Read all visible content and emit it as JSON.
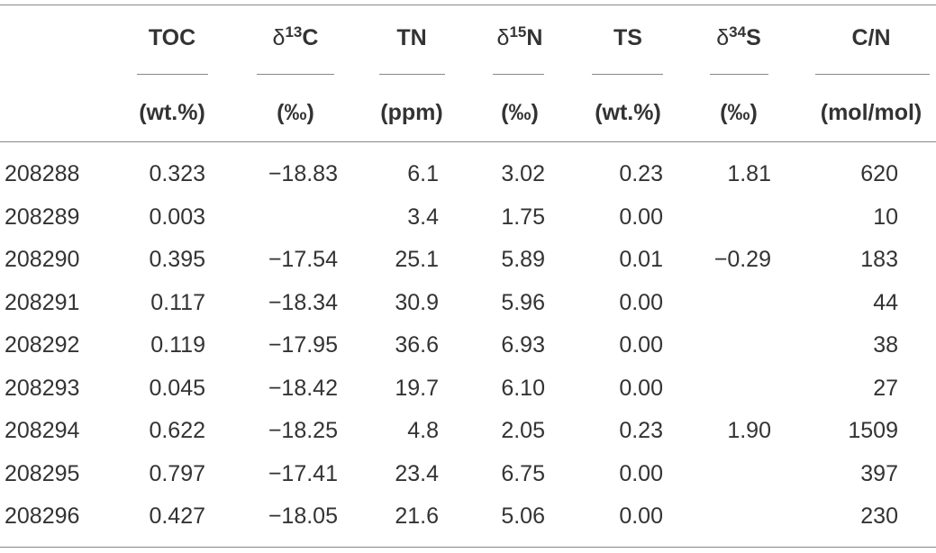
{
  "header": {
    "columns": [
      {
        "main": "TOC",
        "unit": "(wt.%)"
      },
      {
        "prefix": "δ",
        "sup": "13",
        "main": "C",
        "unit": "(‰)"
      },
      {
        "main": "TN",
        "unit": "(ppm)"
      },
      {
        "prefix": "δ",
        "sup": "15",
        "main": "N",
        "unit": "(‰)"
      },
      {
        "main": "TS",
        "unit": "(wt.%)"
      },
      {
        "prefix": "δ",
        "sup": "34",
        "main": "S",
        "unit": "(‰)"
      },
      {
        "main": "C/N",
        "unit": "(mol/mol)"
      }
    ]
  },
  "table": {
    "rows": [
      [
        "208288",
        "0.323",
        "−18.83",
        "6.1",
        "3.02",
        "0.23",
        "1.81",
        "620"
      ],
      [
        "208289",
        "0.003",
        null,
        "3.4",
        "1.75",
        "0.00",
        null,
        "10"
      ],
      [
        "208290",
        "0.395",
        "−17.54",
        "25.1",
        "5.89",
        "0.01",
        "−0.29",
        "183"
      ],
      [
        "208291",
        "0.117",
        "−18.34",
        "30.9",
        "5.96",
        "0.00",
        null,
        "44"
      ],
      [
        "208292",
        "0.119",
        "−17.95",
        "36.6",
        "6.93",
        "0.00",
        null,
        "38"
      ],
      [
        "208293",
        "0.045",
        "−18.42",
        "19.7",
        "6.10",
        "0.00",
        null,
        "27"
      ],
      [
        "208294",
        "0.622",
        "−18.25",
        "4.8",
        "2.05",
        "0.23",
        "1.90",
        "1509"
      ],
      [
        "208295",
        "0.797",
        "−17.41",
        "23.4",
        "6.75",
        "0.00",
        null,
        "397"
      ],
      [
        "208296",
        "0.427",
        "−18.05",
        "21.6",
        "5.06",
        "0.00",
        null,
        "230"
      ]
    ]
  }
}
